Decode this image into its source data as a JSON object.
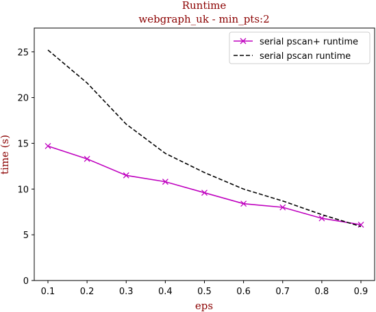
{
  "chart_data": {
    "type": "line",
    "title": "Runtime",
    "subtitle": "webgraph_uk - min_pts:2",
    "title_color": "#8b0000",
    "xlabel": "eps",
    "ylabel": "time (s)",
    "label_color": "#8b0000",
    "x": [
      0.1,
      0.2,
      0.3,
      0.4,
      0.5,
      0.6,
      0.7,
      0.8,
      0.9
    ],
    "xticks": [
      "0.1",
      "0.2",
      "0.3",
      "0.4",
      "0.5",
      "0.6",
      "0.7",
      "0.8",
      "0.9"
    ],
    "yticks": [
      "0",
      "5",
      "10",
      "15",
      "20",
      "25"
    ],
    "xlim": [
      0.065,
      0.935
    ],
    "ylim": [
      0,
      27.6
    ],
    "grid": false,
    "legend_position": "top-right",
    "series": [
      {
        "name": "serial pscan+ runtime",
        "values": [
          14.7,
          13.3,
          11.5,
          10.8,
          9.6,
          8.4,
          8.0,
          6.8,
          6.1
        ],
        "color": "#bf00bf",
        "style": "solid",
        "marker": "x"
      },
      {
        "name": "serial pscan runtime",
        "values": [
          25.2,
          21.6,
          17.1,
          13.9,
          11.8,
          10.0,
          8.7,
          7.2,
          5.9
        ],
        "color": "#000000",
        "style": "dashed",
        "marker": "none"
      }
    ]
  }
}
